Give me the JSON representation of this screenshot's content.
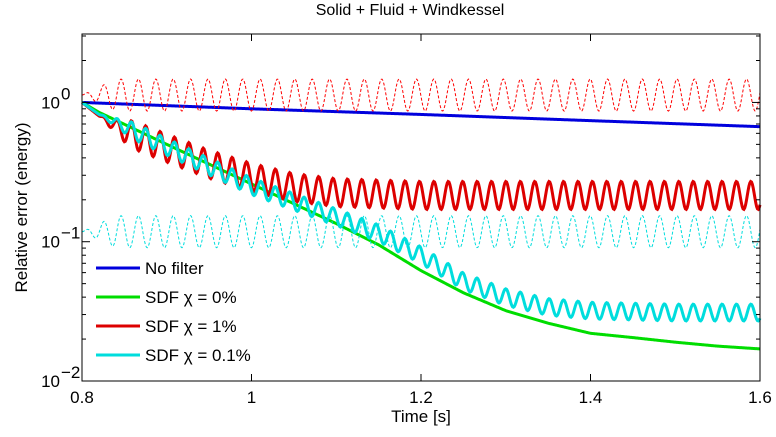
{
  "chart_data": {
    "type": "line",
    "title": "Solid + Fluid + Windkessel",
    "xlabel": "Time [s]",
    "ylabel": "Relative error (energy)",
    "xlim": [
      0.8,
      1.6
    ],
    "ylim": [
      0.01,
      3.1
    ],
    "yscale": "log",
    "grid": false,
    "legend_position": "bottom-left",
    "x_ticks": [
      {
        "value": 0.8,
        "label": "0.8"
      },
      {
        "value": 1.0,
        "label": "1"
      },
      {
        "value": 1.2,
        "label": "1.2"
      },
      {
        "value": 1.4,
        "label": "1.4"
      },
      {
        "value": 1.6,
        "label": "1.6"
      }
    ],
    "y_ticks": [
      {
        "value": 0.01,
        "base": "10",
        "exp": "−2"
      },
      {
        "value": 0.1,
        "base": "10",
        "exp": "−1"
      },
      {
        "value": 1,
        "base": "10",
        "exp": "0"
      }
    ],
    "series": [
      {
        "name": "No filter",
        "color": "#0000dd",
        "style": "solid",
        "legend": true,
        "x": [
          0.8,
          1.0,
          1.2,
          1.4,
          1.6
        ],
        "y": [
          1.0,
          0.9,
          0.82,
          0.74,
          0.67
        ]
      },
      {
        "name": "SDF χ = 0%",
        "color": "#00dd00",
        "style": "solid",
        "legend": true,
        "x": [
          0.8,
          0.82,
          0.9,
          1.0,
          1.1,
          1.15,
          1.2,
          1.25,
          1.3,
          1.35,
          1.4,
          1.45,
          1.5,
          1.55,
          1.6
        ],
        "y": [
          1.0,
          0.85,
          0.5,
          0.26,
          0.135,
          0.095,
          0.062,
          0.043,
          0.032,
          0.026,
          0.022,
          0.0205,
          0.019,
          0.0178,
          0.017
        ]
      },
      {
        "name": "SDF χ = 1%",
        "color": "#dd0000",
        "style": "solid",
        "legend": true,
        "x": [
          0.8,
          0.82,
          0.85,
          0.9,
          0.95,
          1.0,
          1.05,
          1.1,
          1.2,
          1.3,
          1.4,
          1.5,
          1.6
        ],
        "y": [
          1.0,
          0.8,
          0.62,
          0.47,
          0.36,
          0.29,
          0.245,
          0.225,
          0.215,
          0.215,
          0.215,
          0.215,
          0.215
        ],
        "oscillation": {
          "period": 0.017,
          "amplitude": 0.1,
          "start": 0.82
        }
      },
      {
        "name": "SDF χ = 0.1%",
        "color": "#00dddd",
        "style": "solid",
        "legend": true,
        "x": [
          0.8,
          0.82,
          0.9,
          1.0,
          1.1,
          1.15,
          1.2,
          1.25,
          1.3,
          1.35,
          1.4,
          1.5,
          1.6
        ],
        "y": [
          1.0,
          0.82,
          0.48,
          0.25,
          0.15,
          0.115,
          0.08,
          0.052,
          0.04,
          0.034,
          0.032,
          0.031,
          0.031
        ],
        "oscillation": {
          "period": 0.017,
          "amplitude": 0.06,
          "start": 0.82
        }
      },
      {
        "name": "",
        "color": "#ff0000",
        "style": "dashed",
        "legend": false,
        "x": [
          0.8,
          1.6
        ],
        "y": [
          1.13,
          1.13
        ],
        "oscillation": {
          "period": 0.0205,
          "amplitude": 0.115,
          "start": 0.8
        }
      },
      {
        "name": "",
        "color": "#00dddd",
        "style": "dashed",
        "legend": false,
        "x": [
          0.8,
          1.6
        ],
        "y": [
          0.118,
          0.118
        ],
        "oscillation": {
          "period": 0.0205,
          "amplitude": 0.115,
          "start": 0.8
        }
      }
    ]
  }
}
